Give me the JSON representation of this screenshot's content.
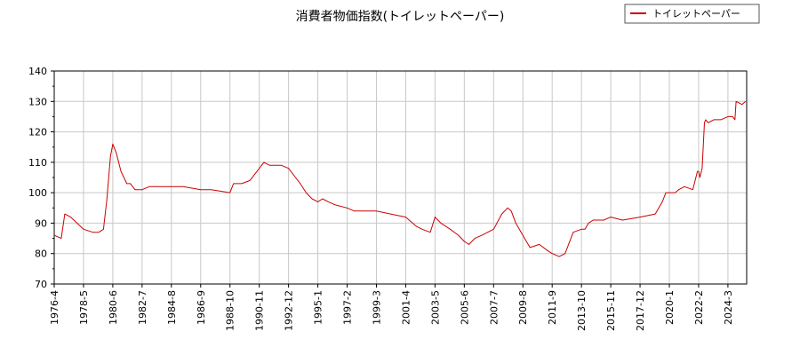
{
  "chart_data": {
    "type": "line",
    "title": "消費者物価指数(トイレットペーパー)",
    "xlabel": "",
    "ylabel": "",
    "ylim": [
      70,
      140
    ],
    "y_ticks": [
      70,
      80,
      90,
      100,
      110,
      120,
      130,
      140
    ],
    "x_ticks": [
      "1976-4",
      "1978-5",
      "1980-6",
      "1982-7",
      "1984-8",
      "1986-9",
      "1988-10",
      "1990-11",
      "1992-12",
      "1995-1",
      "1997-2",
      "1999-3",
      "2001-4",
      "2003-5",
      "2005-6",
      "2007-7",
      "2009-8",
      "2011-9",
      "2013-10",
      "2015-11",
      "2017-12",
      "2020-1",
      "2022-2",
      "2024-3"
    ],
    "grid": true,
    "legend_position": "top-right",
    "series_color": "#cc0000",
    "series": [
      {
        "name": "トイレットペーパー",
        "x": [
          "1976-4",
          "1976-10",
          "1977-1",
          "1977-6",
          "1978-5",
          "1979-1",
          "1979-6",
          "1979-10",
          "1980-1",
          "1980-4",
          "1980-6",
          "1980-9",
          "1981-1",
          "1981-6",
          "1981-9",
          "1982-1",
          "1982-7",
          "1983-1",
          "1983-6",
          "1984-8",
          "1985-6",
          "1986-9",
          "1987-6",
          "1988-10",
          "1989-1",
          "1989-8",
          "1990-3",
          "1990-11",
          "1991-3",
          "1991-8",
          "1992-2",
          "1992-6",
          "1992-12",
          "1993-6",
          "1993-10",
          "1994-3",
          "1994-8",
          "1995-1",
          "1995-5",
          "1995-10",
          "1996-4",
          "1997-2",
          "1997-8",
          "1998-3",
          "1999-3",
          "2000-3",
          "2001-4",
          "2002-1",
          "2002-6",
          "2003-1",
          "2003-5",
          "2003-10",
          "2004-6",
          "2005-1",
          "2005-6",
          "2005-10",
          "2006-3",
          "2006-9",
          "2007-7",
          "2008-2",
          "2008-7",
          "2008-10",
          "2009-2",
          "2009-8",
          "2010-2",
          "2010-10",
          "2011-5",
          "2011-9",
          "2012-3",
          "2012-8",
          "2013-3",
          "2013-10",
          "2014-1",
          "2014-4",
          "2014-8",
          "2015-2",
          "2015-5",
          "2015-11",
          "2016-9",
          "2017-12",
          "2019-1",
          "2019-7",
          "2019-10",
          "2020-1",
          "2020-6",
          "2020-9",
          "2021-2",
          "2021-9",
          "2022-1",
          "2022-2",
          "2022-3",
          "2022-5",
          "2022-7",
          "2022-8",
          "2022-10",
          "2023-3",
          "2023-9",
          "2024-3",
          "2024-7",
          "2024-9",
          "2024-10",
          "2025-3",
          "2025-6"
        ],
        "values": [
          86,
          85,
          93,
          92,
          88,
          87,
          87,
          88,
          98,
          112,
          116,
          113,
          107,
          103,
          103,
          101,
          101,
          102,
          102,
          102,
          102,
          101,
          101,
          100,
          103,
          103,
          104,
          108,
          110,
          109,
          109,
          109,
          108,
          105,
          103,
          100,
          98,
          97,
          98,
          97,
          96,
          95,
          94,
          94,
          94,
          93,
          92,
          89,
          88,
          87,
          92,
          90,
          88,
          86,
          84,
          83,
          85,
          86,
          88,
          93,
          95,
          94,
          90,
          86,
          82,
          83,
          81,
          80,
          79,
          80,
          87,
          88,
          88,
          90,
          91,
          91,
          91,
          92,
          91,
          92,
          93,
          97,
          100,
          100,
          100,
          101,
          102,
          101,
          107,
          107,
          105,
          108,
          123,
          124,
          123,
          124,
          124,
          125,
          125,
          124,
          130,
          129,
          130
        ]
      }
    ]
  }
}
